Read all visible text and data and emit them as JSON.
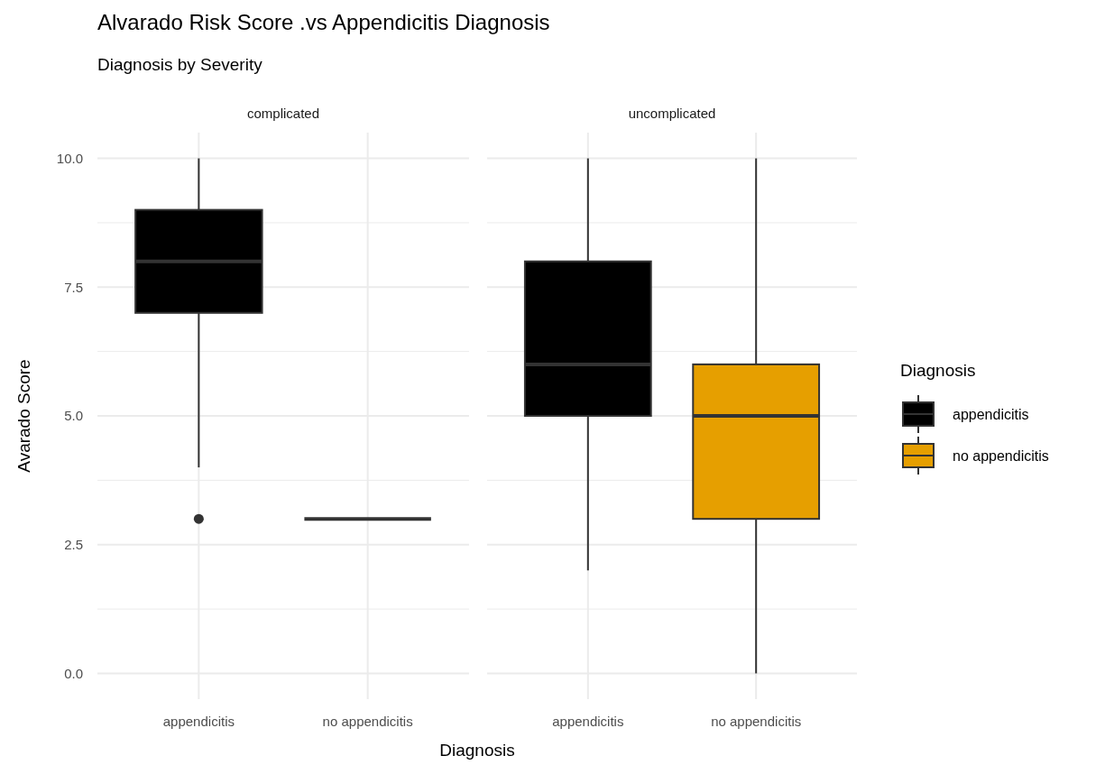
{
  "chart_data": [
    {
      "type": "box",
      "title": "Alvarado Risk Score .vs Appendicitis Diagnosis",
      "subtitle": "Diagnosis by Severity",
      "annotations": [
        "complicated"
      ],
      "xlabel": "Diagnosis",
      "ylabel": "Avarado Score",
      "categories": [
        "appendicitis",
        "no appendicitis"
      ],
      "ylim": [
        -0.5,
        10.5
      ],
      "yticks": [
        {
          "value": 0,
          "label": "0.0"
        },
        {
          "value": 2.5,
          "label": "2.5"
        },
        {
          "value": 5,
          "label": "5.0"
        },
        {
          "value": 7.5,
          "label": "7.5"
        },
        {
          "value": 10,
          "label": "10.0"
        }
      ],
      "grid": true,
      "series": [
        {
          "color": "#000000",
          "boxes": [
            {
              "low": 4,
              "q1": 7,
              "median": 8,
              "q3": 9,
              "high": 10,
              "outliers": [
                3
              ]
            },
            null
          ]
        },
        {
          "boxes": [
            null,
            {
              "low": 3,
              "q1": 3,
              "median": 3,
              "q3": 3,
              "high": 3
            }
          ]
        }
      ]
    },
    {
      "type": "box",
      "annotations": [
        "uncomplicated"
      ],
      "categories": [
        "appendicitis",
        "no appendicitis"
      ],
      "ylim": [
        -0.5,
        10.5
      ],
      "yticks": [
        {
          "value": 0,
          "label": null
        },
        {
          "value": 2.5,
          "label": null
        },
        {
          "value": 5,
          "label": null
        },
        {
          "value": 7.5,
          "label": null
        },
        {
          "value": 10,
          "label": null
        }
      ],
      "tick_labels": "x",
      "grid": true,
      "legend": "right",
      "legend_title": "Diagnosis",
      "series": [
        {
          "name": "appendicitis",
          "color": "#000000",
          "boxes": [
            {
              "low": 2,
              "q1": 5,
              "median": 6,
              "q3": 8,
              "high": 10
            },
            null
          ]
        },
        {
          "name": "no appendicitis",
          "color": "#e69f00",
          "boxes": [
            null,
            {
              "low": 0,
              "q1": 3,
              "median": 5,
              "q3": 6,
              "high": 10
            }
          ]
        }
      ]
    }
  ]
}
